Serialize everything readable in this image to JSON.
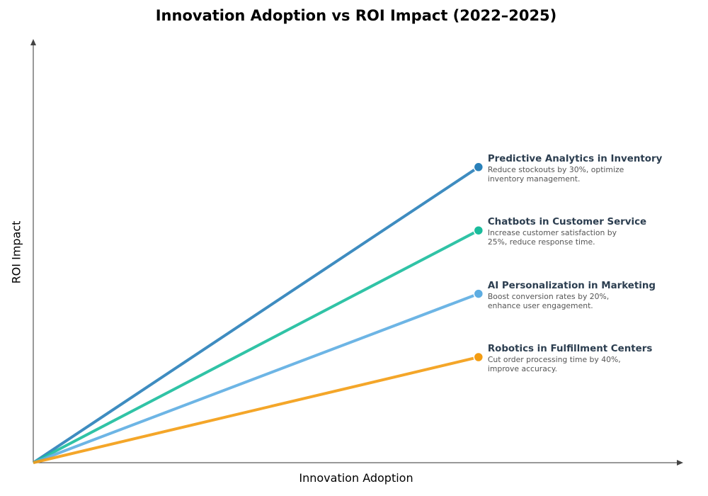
{
  "chart_data": {
    "type": "line",
    "title": "Innovation Adoption vs ROI Impact (2022–2025)",
    "xlabel": "Innovation Adoption",
    "ylabel": "ROI Impact",
    "xlim": [
      0,
      1
    ],
    "ylim": [
      0,
      1
    ],
    "grid": false,
    "ticks": false,
    "series": [
      {
        "name": "Predictive Analytics in Inventory",
        "description": "Reduce stockouts by 30%, optimize\ninventory management.",
        "color": "#2980b9",
        "x": [
          0,
          0.685
        ],
        "y": [
          0,
          0.7
        ]
      },
      {
        "name": "Chatbots in Customer Service",
        "description": "Increase customer satisfaction by\n25%, reduce response time.",
        "color": "#1abc9c",
        "x": [
          0,
          0.685
        ],
        "y": [
          0,
          0.55
        ]
      },
      {
        "name": "AI Personalization in Marketing",
        "description": "Boost conversion rates by 20%,\nenhance user engagement.",
        "color": "#5dade2",
        "x": [
          0,
          0.685
        ],
        "y": [
          0,
          0.4
        ]
      },
      {
        "name": "Robotics in Fulfillment Centers",
        "description": "Cut order processing time by 40%,\nimprove accuracy.",
        "color": "#f39c12",
        "x": [
          0,
          0.685
        ],
        "y": [
          0,
          0.25
        ]
      }
    ]
  }
}
